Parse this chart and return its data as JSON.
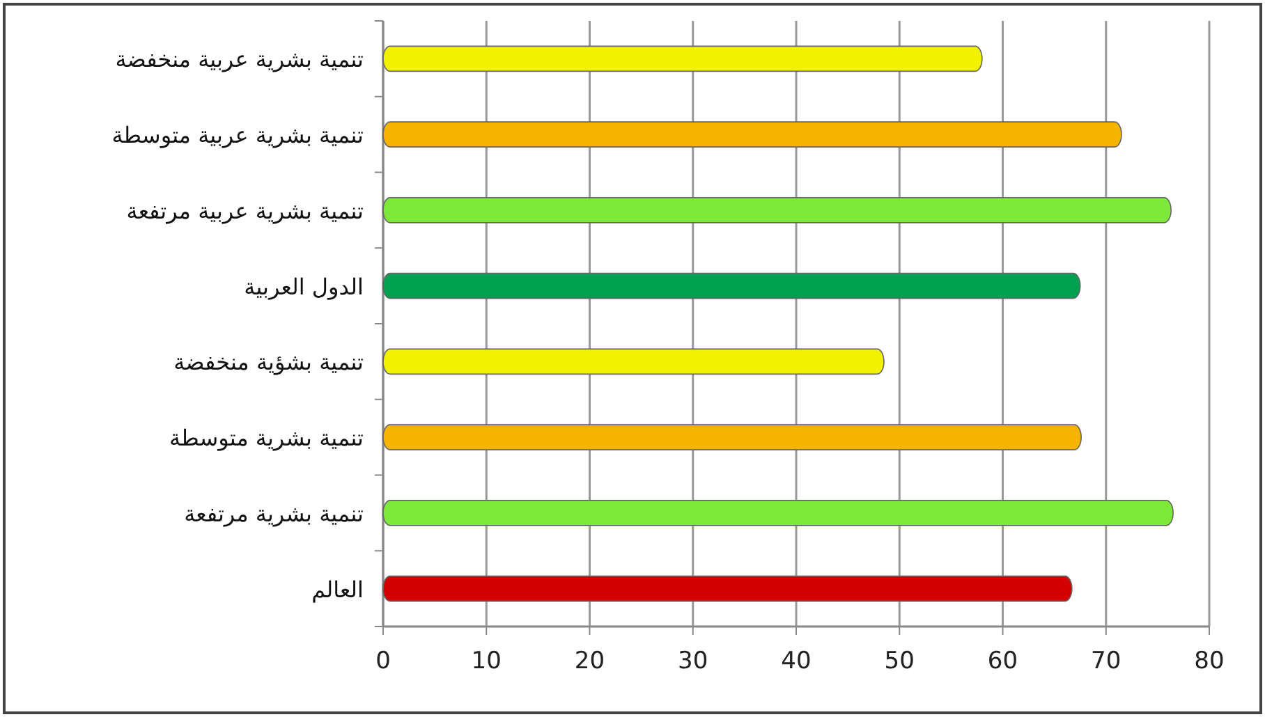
{
  "chart_data": {
    "type": "bar",
    "orientation": "horizontal",
    "categories": [
      "تنمية بشرية عربية منخفضة",
      "تنمية بشرية عربية متوسطة",
      "تنمية بشرية عربية مرتفعة",
      "الدول العربية",
      "تنمية بشؤية منخفضة",
      "تنمية بشرية متوسطة",
      "تنمية بشرية مرتفعة",
      "العالم"
    ],
    "values": [
      58,
      71.5,
      76.3,
      67.5,
      48.5,
      67.6,
      76.5,
      66.7
    ],
    "colors": [
      "#f2f200",
      "#f5b400",
      "#7ee83a",
      "#00a050",
      "#f2f200",
      "#f5b400",
      "#7ee83a",
      "#d40000"
    ],
    "xlim": [
      0,
      80
    ],
    "xticks": [
      0,
      10,
      20,
      30,
      40,
      50,
      60,
      70,
      80
    ],
    "grid": "x"
  }
}
